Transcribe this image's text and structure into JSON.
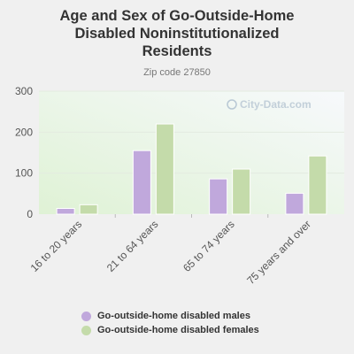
{
  "chart_data": {
    "type": "bar",
    "title": "Age and Sex of Go-Outside-Home\nDisabled Noninstitutionalized\nResidents",
    "subtitle": "Zip code 27850",
    "categories": [
      "16 to 20 years",
      "21 to 64 years",
      "65 to 74 years",
      "75 years and over"
    ],
    "series": [
      {
        "name": "Go-outside-home disabled males",
        "values": [
          14,
          155,
          86,
          51
        ],
        "color": "#c0a8dc"
      },
      {
        "name": "Go-outside-home disabled females",
        "values": [
          23,
          220,
          110,
          142
        ],
        "color": "#c4dbaa"
      }
    ],
    "ylim": [
      0,
      300
    ],
    "yticks": [
      0,
      100,
      200,
      300
    ],
    "grid": true,
    "legend_position": "bottom",
    "watermark": "City-Data.com"
  }
}
